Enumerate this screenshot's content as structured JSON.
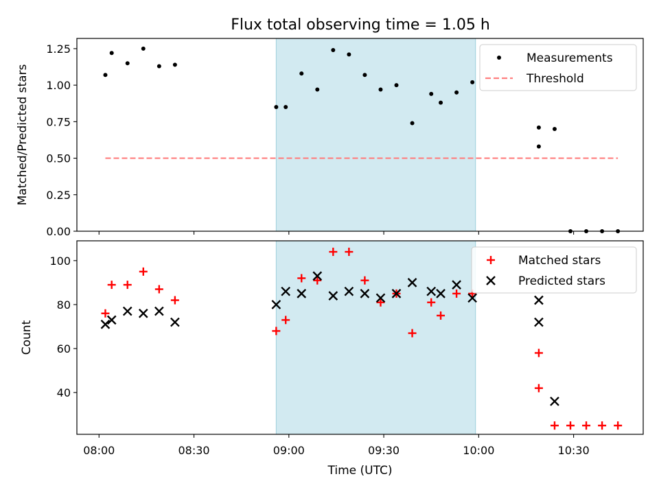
{
  "title": "Flux total observing time = 1.05 h",
  "colors": {
    "shade": "#add8e6",
    "threshold": "#ff7f7f",
    "measurement": "#000000",
    "matched": "#ff0000",
    "predicted": "#000000"
  },
  "chart_data": [
    {
      "type": "scatter",
      "ylabel": "Matched/Predicted stars",
      "ylim": [
        0,
        1.32
      ],
      "yticks": [
        "0.00",
        "0.25",
        "0.50",
        "0.75",
        "1.00",
        "1.25"
      ],
      "xlim": [
        "07:53",
        "10:52"
      ],
      "shaded_span": [
        "08:56",
        "09:59"
      ],
      "legend": {
        "position": "top-right",
        "entries": [
          "Measurements",
          "Threshold"
        ]
      },
      "series": [
        {
          "name": "Measurements",
          "marker": "dot",
          "x": [
            "08:02",
            "08:04",
            "08:09",
            "08:14",
            "08:19",
            "08:24",
            "08:56",
            "08:59",
            "09:04",
            "09:09",
            "09:14",
            "09:19",
            "09:24",
            "09:29",
            "09:34",
            "09:39",
            "09:45",
            "09:48",
            "09:53",
            "09:58",
            "10:19",
            "10:19",
            "10:24",
            "10:29",
            "10:34",
            "10:39",
            "10:44"
          ],
          "y": [
            1.07,
            1.22,
            1.15,
            1.25,
            1.13,
            1.14,
            0.85,
            0.85,
            1.08,
            0.97,
            1.24,
            1.21,
            1.07,
            0.97,
            1.0,
            0.74,
            0.94,
            0.88,
            0.95,
            1.02,
            0.71,
            0.58,
            0.7,
            0.0,
            0.0,
            0.0,
            0.0
          ]
        },
        {
          "name": "Threshold",
          "marker": "dashed-line",
          "x": [
            "08:02",
            "10:44"
          ],
          "y": [
            0.5,
            0.5
          ]
        }
      ]
    },
    {
      "type": "scatter",
      "xlabel": "Time (UTC)",
      "ylabel": "Count",
      "ylim": [
        21,
        109
      ],
      "yticks": [
        "40",
        "60",
        "80",
        "100"
      ],
      "xticks": [
        "08:00",
        "08:30",
        "09:00",
        "09:30",
        "10:00",
        "10:30"
      ],
      "xlim": [
        "07:53",
        "10:52"
      ],
      "shaded_span": [
        "08:56",
        "09:59"
      ],
      "legend": {
        "position": "top-right",
        "entries": [
          "Matched stars",
          "Predicted stars"
        ]
      },
      "series": [
        {
          "name": "Matched stars",
          "marker": "plus",
          "x": [
            "08:02",
            "08:04",
            "08:09",
            "08:14",
            "08:19",
            "08:24",
            "08:56",
            "08:59",
            "09:04",
            "09:09",
            "09:14",
            "09:19",
            "09:24",
            "09:29",
            "09:34",
            "09:39",
            "09:45",
            "09:48",
            "09:53",
            "09:58",
            "10:19",
            "10:19",
            "10:24",
            "10:29",
            "10:34",
            "10:39",
            "10:44"
          ],
          "y": [
            76,
            89,
            89,
            95,
            87,
            82,
            68,
            73,
            92,
            91,
            104,
            104,
            91,
            81,
            85,
            67,
            81,
            75,
            85,
            85,
            58,
            42,
            25,
            25,
            25,
            25,
            25
          ]
        },
        {
          "name": "Predicted stars",
          "marker": "x",
          "x": [
            "08:02",
            "08:04",
            "08:09",
            "08:14",
            "08:19",
            "08:24",
            "08:56",
            "08:59",
            "09:04",
            "09:09",
            "09:14",
            "09:19",
            "09:24",
            "09:29",
            "09:34",
            "09:39",
            "09:45",
            "09:48",
            "09:53",
            "09:58",
            "10:19",
            "10:19",
            "10:24"
          ],
          "y": [
            71,
            73,
            77,
            76,
            77,
            72,
            80,
            86,
            85,
            93,
            84,
            86,
            85,
            83,
            85,
            90,
            86,
            85,
            89,
            83,
            82,
            72,
            36
          ]
        }
      ]
    }
  ]
}
